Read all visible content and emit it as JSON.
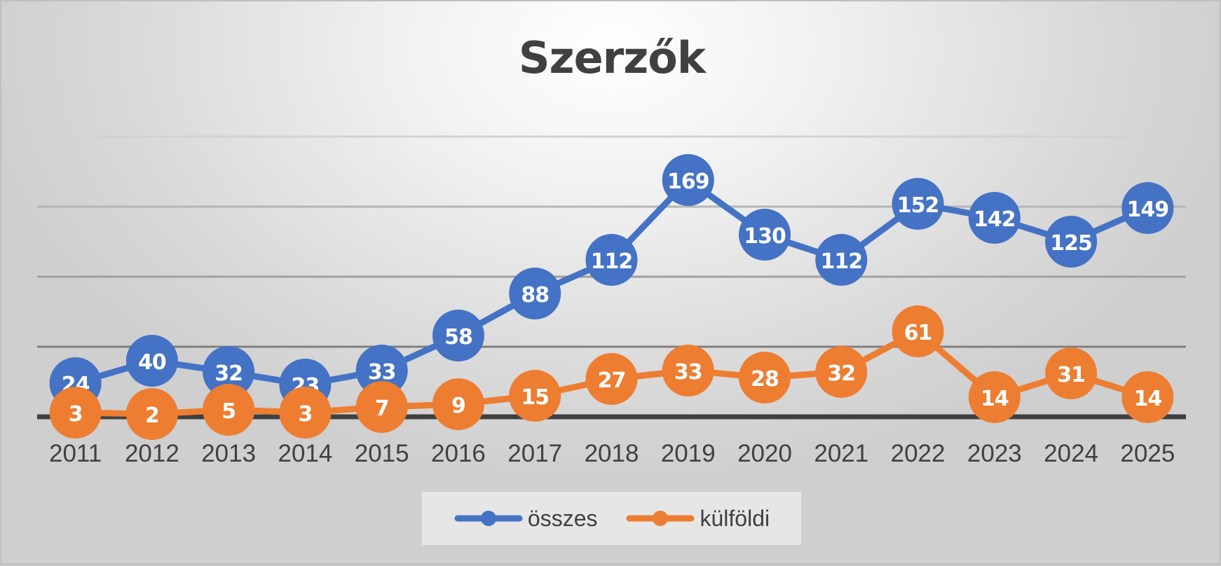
{
  "chart_data": {
    "type": "line",
    "title": "Szerzők",
    "xlabel": "",
    "ylabel": "",
    "categories": [
      "2011",
      "2012",
      "2013",
      "2014",
      "2015",
      "2016",
      "2017",
      "2018",
      "2019",
      "2020",
      "2021",
      "2022",
      "2023",
      "2024",
      "2025"
    ],
    "series": [
      {
        "name": "összes",
        "color": "#4472C4",
        "values": [
          24,
          40,
          32,
          23,
          33,
          58,
          88,
          112,
          169,
          130,
          112,
          152,
          142,
          125,
          149
        ]
      },
      {
        "name": "külföldi",
        "color": "#ED7D31",
        "values": [
          3,
          2,
          5,
          3,
          7,
          9,
          15,
          27,
          33,
          28,
          32,
          61,
          14,
          31,
          14
        ]
      }
    ],
    "ylim": [
      0,
      200
    ],
    "gridlines": [
      50,
      100,
      150,
      200
    ],
    "y_tick_labels_visible": false,
    "data_labels": true,
    "grid": true,
    "legend_position": "bottom"
  },
  "legend": {
    "items": [
      {
        "label": "összes",
        "color": "#4472C4"
      },
      {
        "label": "külföldi",
        "color": "#ED7D31"
      }
    ]
  }
}
